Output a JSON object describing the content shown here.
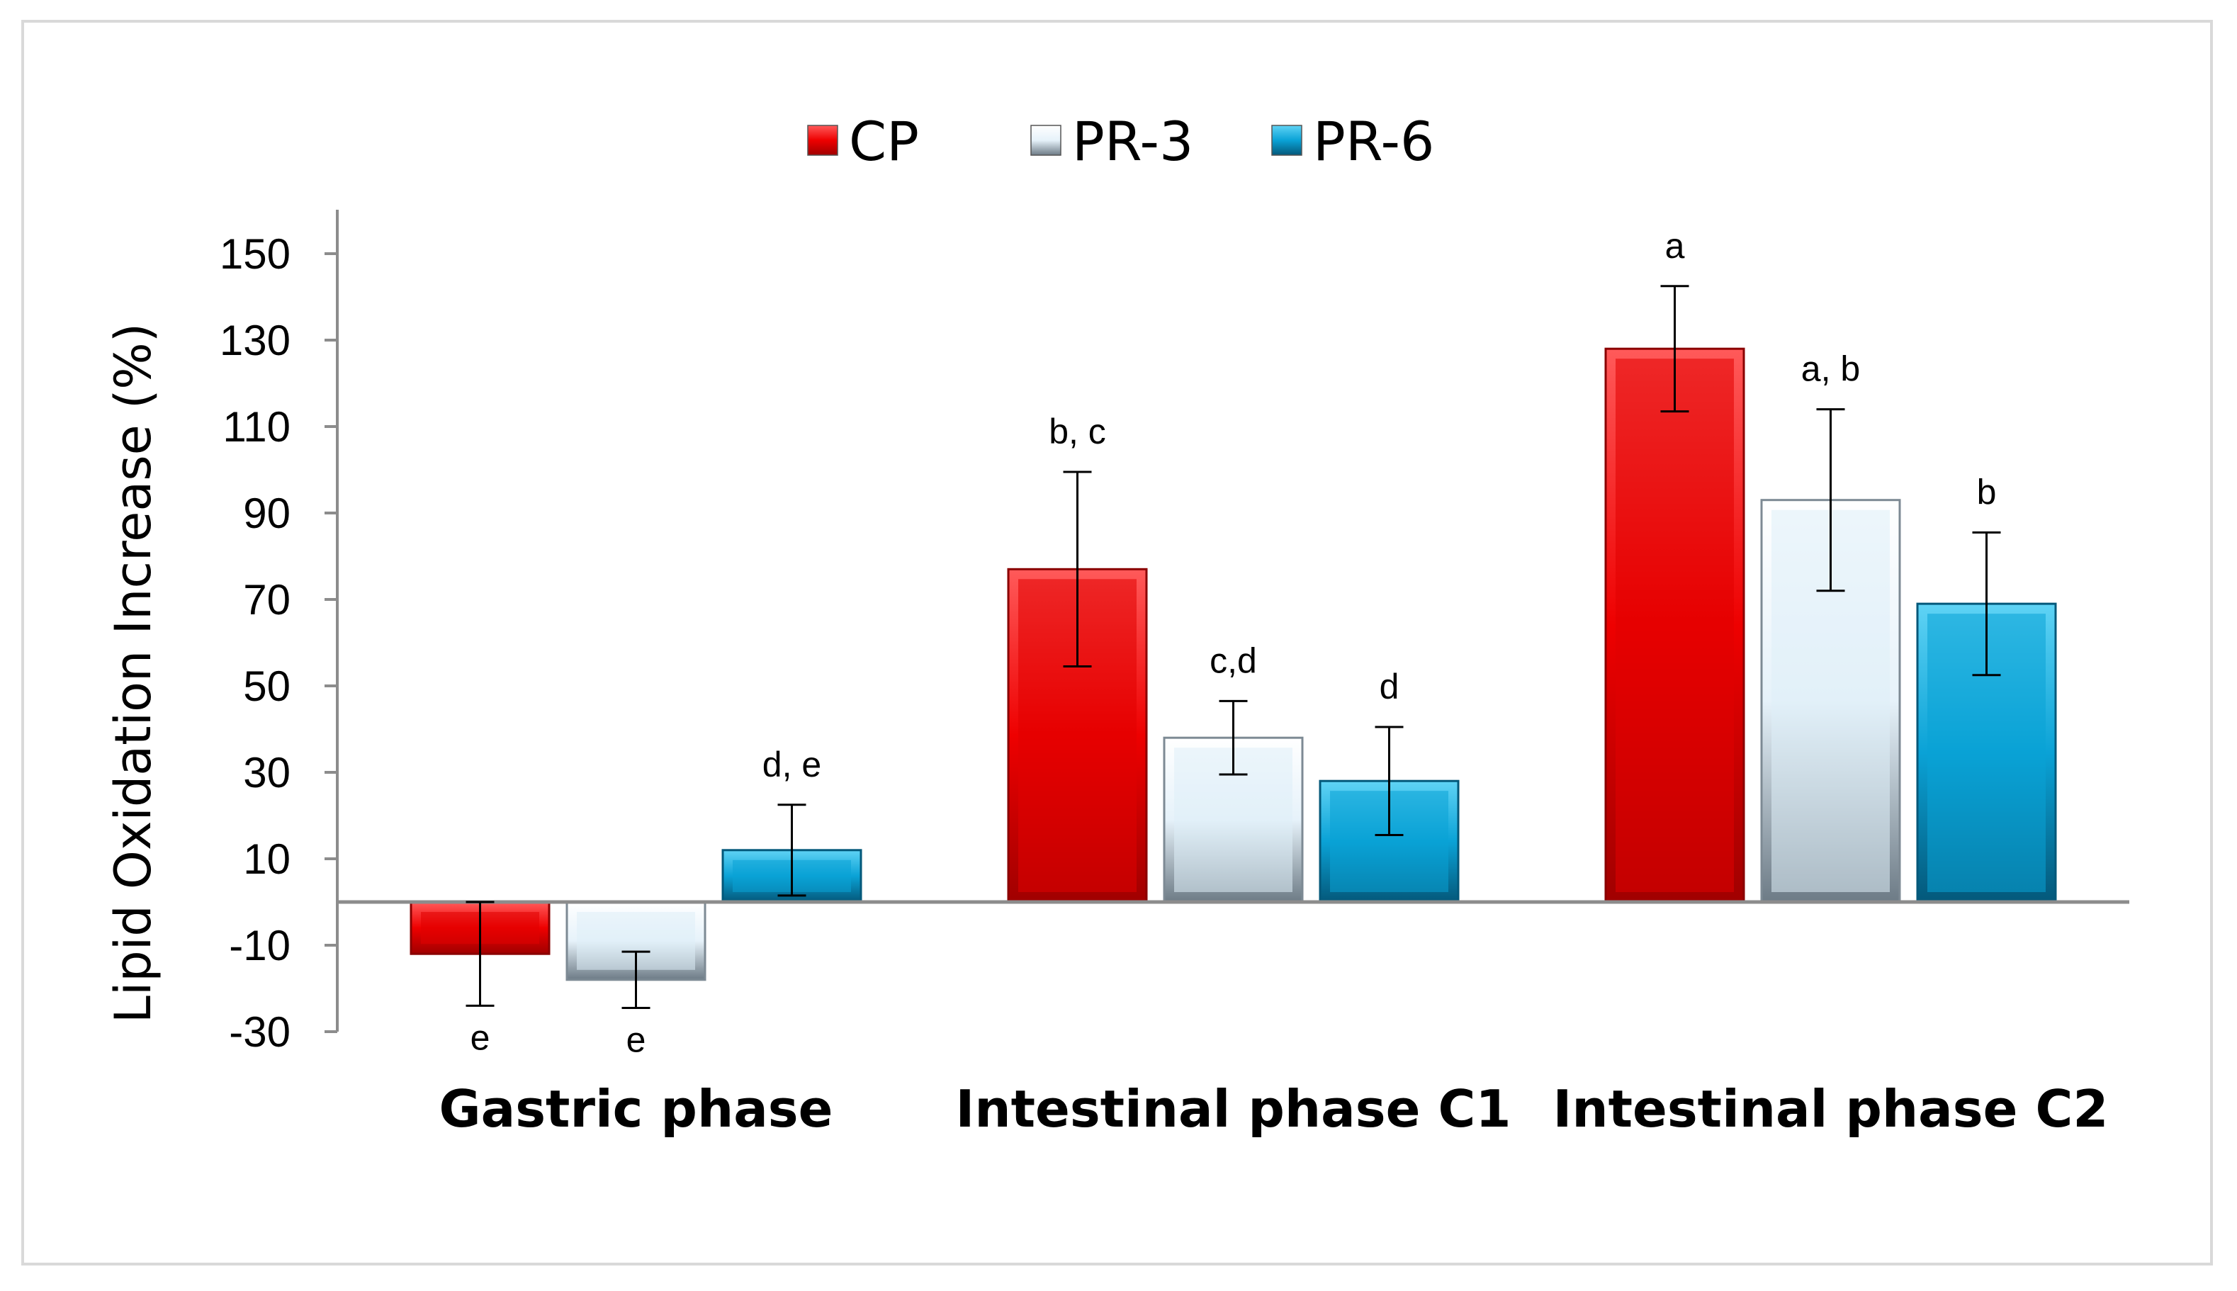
{
  "chart_data": {
    "type": "bar",
    "title": "",
    "xlabel": "",
    "ylabel": "Lipid Oxidation Increase (%)",
    "ylim": [
      -30,
      160
    ],
    "yticks": [
      150,
      130,
      110,
      90,
      70,
      50,
      30,
      10,
      -10,
      -30
    ],
    "categories": [
      "Gastric phase",
      "Intestinal phase C1",
      "Intestinal phase C2"
    ],
    "legend_position": "top-center",
    "grid": false,
    "series": [
      {
        "name": "CP",
        "color": "#e00000",
        "values": [
          -12,
          77,
          128
        ],
        "errors": [
          12,
          22.5,
          14.5
        ],
        "labels": [
          "e",
          "b, c",
          "a"
        ]
      },
      {
        "name": "PR-3",
        "color": "#dfeef7",
        "values": [
          -18,
          38,
          93
        ],
        "errors": [
          6.5,
          8.5,
          21
        ],
        "labels": [
          "e",
          "c,d",
          "a, b"
        ]
      },
      {
        "name": "PR-6",
        "color": "#0aa2d6",
        "values": [
          12,
          28,
          69
        ],
        "errors": [
          10.5,
          12.5,
          16.5
        ],
        "labels": [
          "d, e",
          "d",
          "b"
        ]
      }
    ]
  }
}
